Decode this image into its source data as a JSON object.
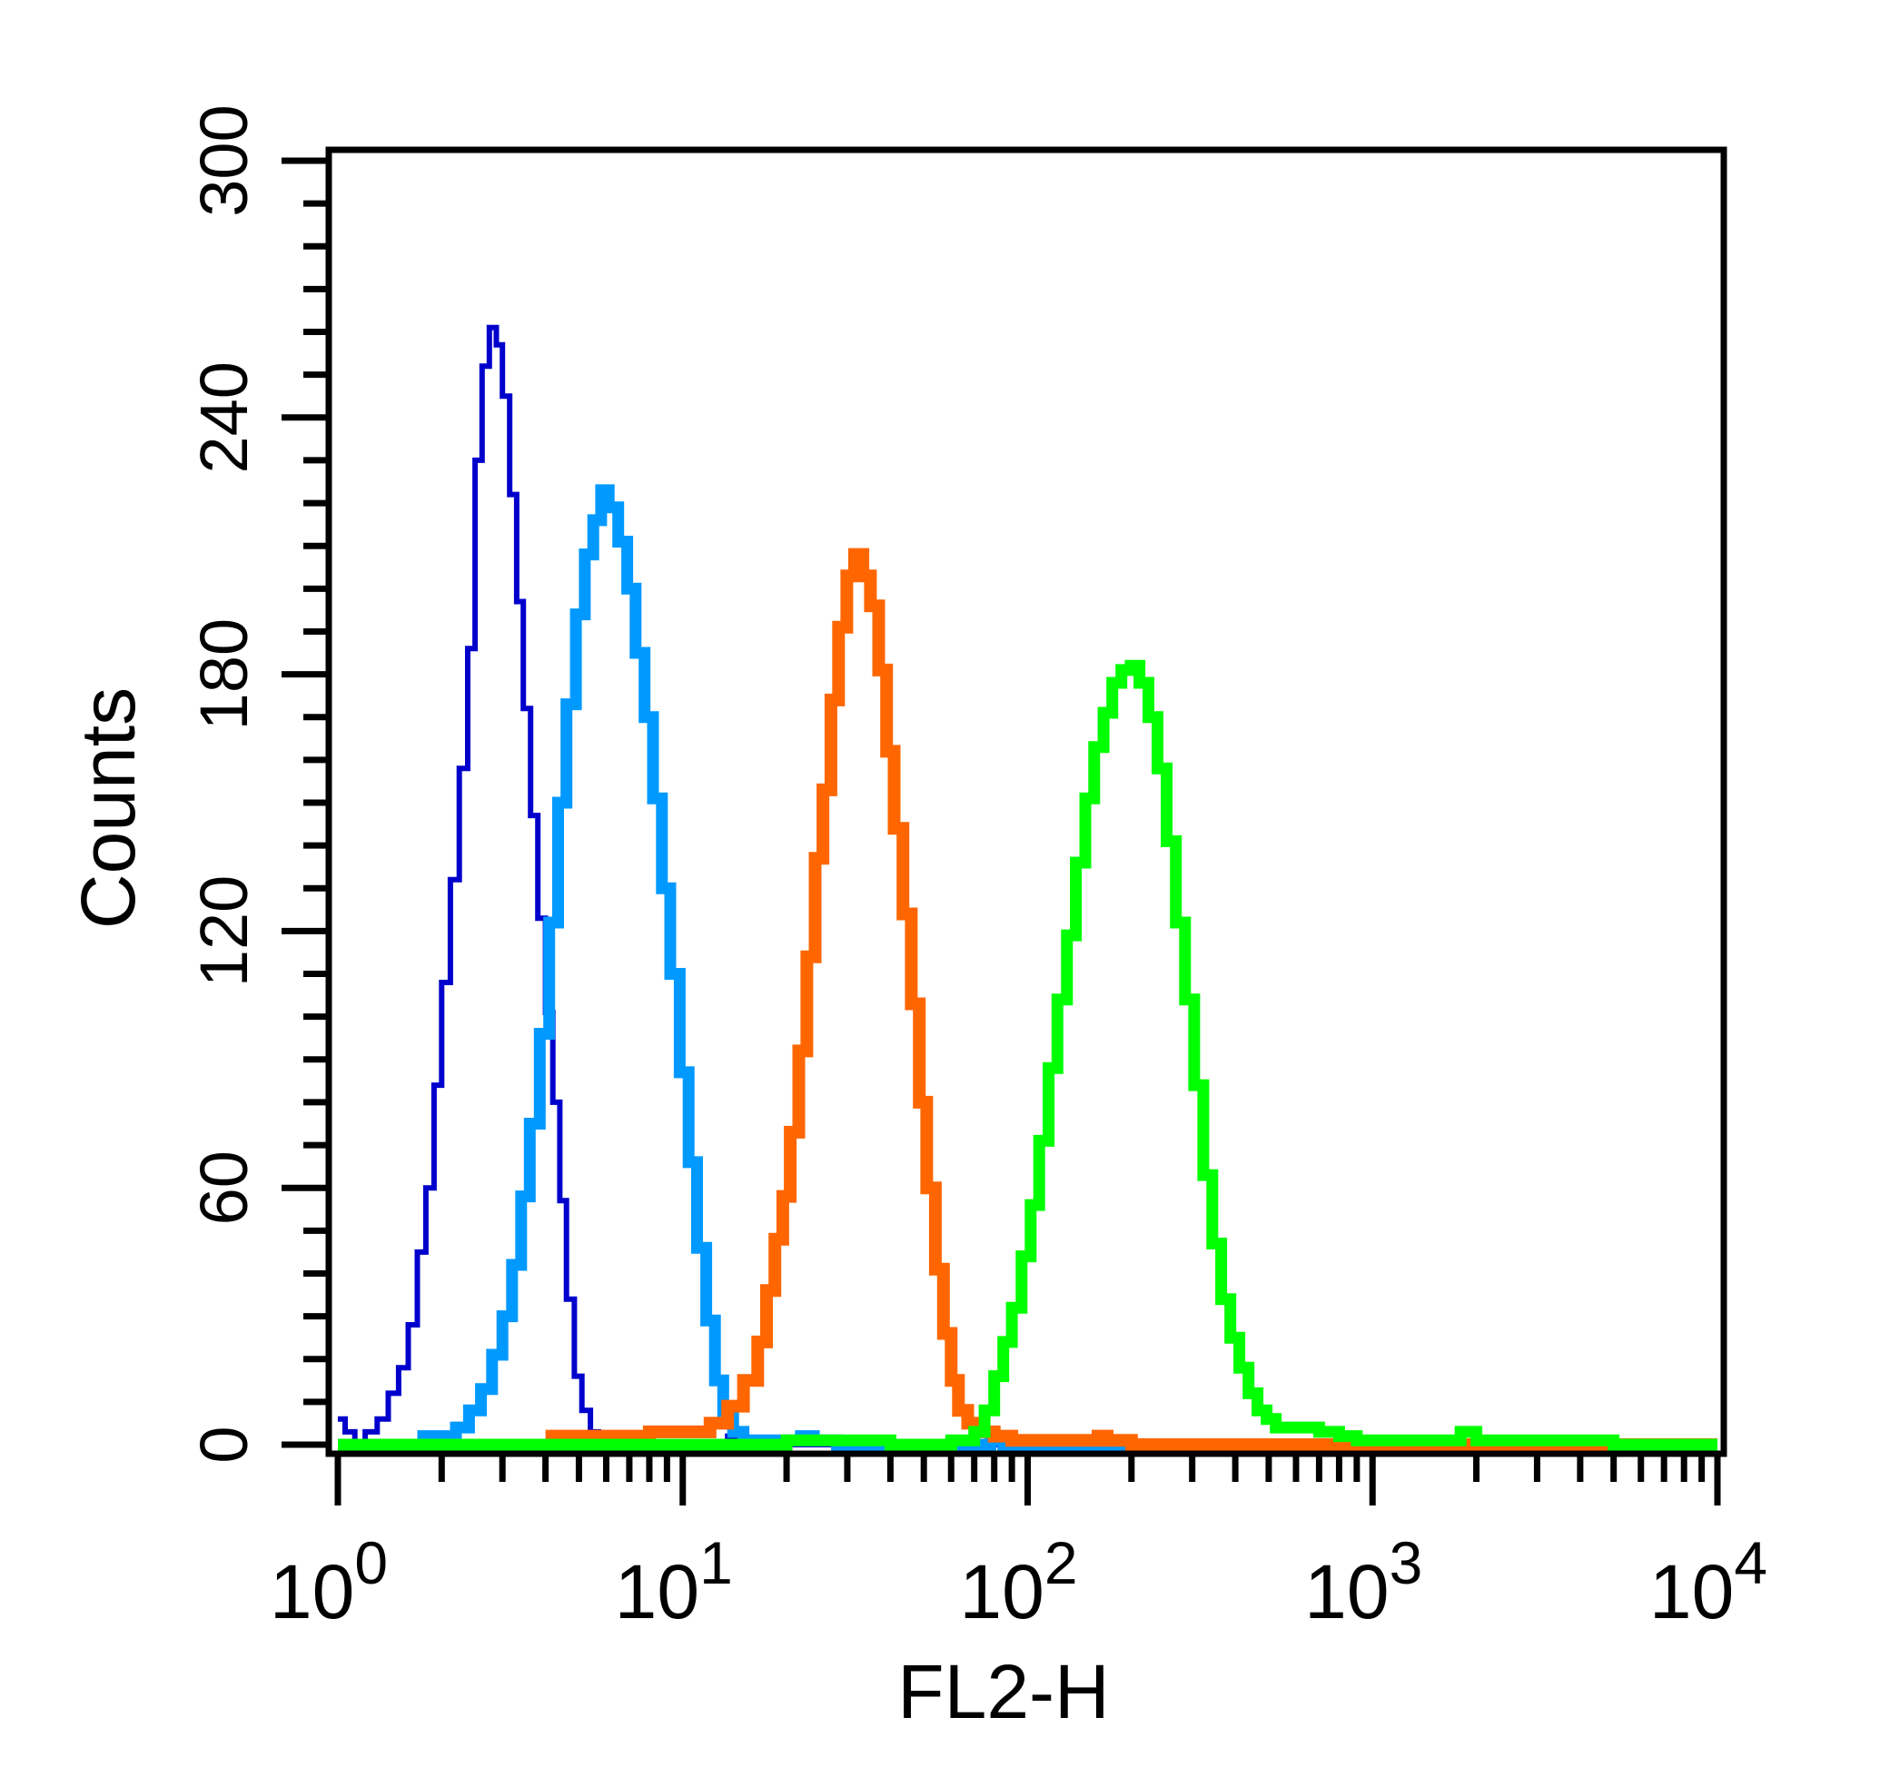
{
  "chart_data": {
    "type": "histogram",
    "xlabel": "FL2-H",
    "ylabel": "Counts",
    "x_scale": "log",
    "xlim": [
      1,
      10000
    ],
    "ylim": [
      0,
      300
    ],
    "grid": false,
    "x_ticks": [
      {
        "value": 1,
        "base": "10",
        "exp": "0"
      },
      {
        "value": 10,
        "base": "10",
        "exp": "1"
      },
      {
        "value": 100,
        "base": "10",
        "exp": "2"
      },
      {
        "value": 1000,
        "base": "10",
        "exp": "3"
      },
      {
        "value": 10000,
        "base": "10",
        "exp": "4"
      }
    ],
    "y_ticks": [
      0,
      60,
      120,
      180,
      240,
      300
    ],
    "series": [
      {
        "color": "#0000cc",
        "points": [
          [
            1.0,
            6
          ],
          [
            1.05,
            3
          ],
          [
            1.12,
            0
          ],
          [
            1.2,
            3
          ],
          [
            1.3,
            6
          ],
          [
            1.4,
            12
          ],
          [
            1.5,
            18
          ],
          [
            1.6,
            28
          ],
          [
            1.7,
            45
          ],
          [
            1.8,
            60
          ],
          [
            1.9,
            84
          ],
          [
            2.0,
            108
          ],
          [
            2.12,
            132
          ],
          [
            2.25,
            158
          ],
          [
            2.38,
            186
          ],
          [
            2.5,
            230
          ],
          [
            2.62,
            252
          ],
          [
            2.75,
            261
          ],
          [
            2.88,
            257
          ],
          [
            3.0,
            245
          ],
          [
            3.15,
            222
          ],
          [
            3.3,
            197
          ],
          [
            3.45,
            172
          ],
          [
            3.62,
            147
          ],
          [
            3.8,
            123
          ],
          [
            4.0,
            101
          ],
          [
            4.2,
            80
          ],
          [
            4.4,
            57
          ],
          [
            4.6,
            34
          ],
          [
            4.85,
            16
          ],
          [
            5.1,
            8
          ],
          [
            5.4,
            3
          ],
          [
            5.7,
            1
          ],
          [
            6.2,
            0
          ],
          [
            8.0,
            0
          ],
          [
            10.0,
            0
          ],
          [
            13.0,
            0
          ],
          [
            13.5,
            2
          ],
          [
            14.5,
            0
          ],
          [
            40.0,
            0
          ],
          [
            80.0,
            0
          ],
          [
            82.0,
            2
          ],
          [
            90.0,
            0
          ],
          [
            10000,
            0
          ]
        ]
      },
      {
        "color": "#0099ff",
        "points": [
          [
            1.7,
            2
          ],
          [
            2.0,
            2
          ],
          [
            2.2,
            4
          ],
          [
            2.4,
            8
          ],
          [
            2.6,
            13
          ],
          [
            2.8,
            21
          ],
          [
            3.0,
            30
          ],
          [
            3.2,
            42
          ],
          [
            3.4,
            58
          ],
          [
            3.6,
            75
          ],
          [
            3.85,
            96
          ],
          [
            4.1,
            122
          ],
          [
            4.35,
            150
          ],
          [
            4.6,
            173
          ],
          [
            4.9,
            194
          ],
          [
            5.2,
            208
          ],
          [
            5.5,
            216
          ],
          [
            5.8,
            223
          ],
          [
            6.1,
            219
          ],
          [
            6.5,
            211
          ],
          [
            6.9,
            200
          ],
          [
            7.3,
            185
          ],
          [
            7.75,
            170
          ],
          [
            8.2,
            151
          ],
          [
            8.7,
            130
          ],
          [
            9.2,
            110
          ],
          [
            9.8,
            87
          ],
          [
            10.4,
            66
          ],
          [
            11.0,
            46
          ],
          [
            11.7,
            29
          ],
          [
            12.4,
            15
          ],
          [
            13.1,
            7
          ],
          [
            14.0,
            3
          ],
          [
            15.0,
            1
          ],
          [
            17.0,
            1
          ],
          [
            20.0,
            1
          ],
          [
            22.0,
            2
          ],
          [
            24.0,
            1
          ],
          [
            28.0,
            0
          ],
          [
            75.0,
            0
          ],
          [
            78.0,
            1
          ],
          [
            85.0,
            0
          ],
          [
            10000,
            0
          ]
        ]
      },
      {
        "color": "#ff6600",
        "points": [
          [
            4.0,
            2
          ],
          [
            6.0,
            2
          ],
          [
            8.0,
            3
          ],
          [
            10.0,
            3
          ],
          [
            12.0,
            5
          ],
          [
            13.5,
            9
          ],
          [
            15.0,
            15
          ],
          [
            16.5,
            24
          ],
          [
            17.5,
            36
          ],
          [
            18.5,
            48
          ],
          [
            19.5,
            58
          ],
          [
            20.5,
            73
          ],
          [
            21.7,
            92
          ],
          [
            22.9,
            114
          ],
          [
            24.2,
            137
          ],
          [
            25.5,
            153
          ],
          [
            26.9,
            174
          ],
          [
            28.3,
            191
          ],
          [
            29.9,
            203
          ],
          [
            31.5,
            208
          ],
          [
            33.3,
            203
          ],
          [
            35.0,
            196
          ],
          [
            37.0,
            181
          ],
          [
            39.0,
            162
          ],
          [
            41.0,
            144
          ],
          [
            43.5,
            124
          ],
          [
            46.0,
            103
          ],
          [
            48.5,
            80
          ],
          [
            51.0,
            60
          ],
          [
            54.0,
            41
          ],
          [
            57.0,
            26
          ],
          [
            60.0,
            15
          ],
          [
            63.0,
            8
          ],
          [
            67.0,
            5
          ],
          [
            72.0,
            3
          ],
          [
            80.0,
            2
          ],
          [
            90.0,
            1
          ],
          [
            100.0,
            1
          ],
          [
            120.0,
            1
          ],
          [
            150.0,
            1
          ],
          [
            160.0,
            2
          ],
          [
            170.0,
            1
          ],
          [
            200.0,
            0
          ],
          [
            300.0,
            0
          ],
          [
            400.0,
            0
          ],
          [
            600.0,
            0
          ],
          [
            900.0,
            0
          ],
          [
            1200.0,
            0
          ],
          [
            10000,
            0
          ]
        ]
      },
      {
        "color": "#00ff00",
        "points": [
          [
            1.0,
            0
          ],
          [
            2.0,
            0
          ],
          [
            10.0,
            0
          ],
          [
            20.0,
            1
          ],
          [
            40.0,
            0
          ],
          [
            60.0,
            1
          ],
          [
            70.0,
            3
          ],
          [
            75.0,
            8
          ],
          [
            80.0,
            16
          ],
          [
            85.0,
            24
          ],
          [
            90.0,
            32
          ],
          [
            96.0,
            44
          ],
          [
            102.0,
            56
          ],
          [
            108.0,
            71
          ],
          [
            115.0,
            88
          ],
          [
            122.0,
            104
          ],
          [
            130.0,
            119
          ],
          [
            138.0,
            136
          ],
          [
            147.0,
            151
          ],
          [
            156.0,
            163
          ],
          [
            166.0,
            171
          ],
          [
            176.0,
            178
          ],
          [
            187.0,
            181
          ],
          [
            199.0,
            182
          ],
          [
            211.0,
            178
          ],
          [
            224.0,
            170
          ],
          [
            238.0,
            158
          ],
          [
            253.0,
            141
          ],
          [
            269.0,
            122
          ],
          [
            286.0,
            104
          ],
          [
            304.0,
            84
          ],
          [
            323.0,
            63
          ],
          [
            343.0,
            47
          ],
          [
            364.0,
            34
          ],
          [
            387.0,
            25
          ],
          [
            411.0,
            18
          ],
          [
            437.0,
            12
          ],
          [
            464.0,
            8
          ],
          [
            493.0,
            6
          ],
          [
            524.0,
            4
          ],
          [
            600.0,
            4
          ],
          [
            700.0,
            3
          ],
          [
            800.0,
            2
          ],
          [
            900.0,
            1
          ],
          [
            1200.0,
            1
          ],
          [
            1500.0,
            1
          ],
          [
            1800.0,
            3
          ],
          [
            2000.0,
            1
          ],
          [
            3000.0,
            1
          ],
          [
            5000.0,
            0
          ],
          [
            10000,
            0
          ]
        ]
      }
    ]
  }
}
